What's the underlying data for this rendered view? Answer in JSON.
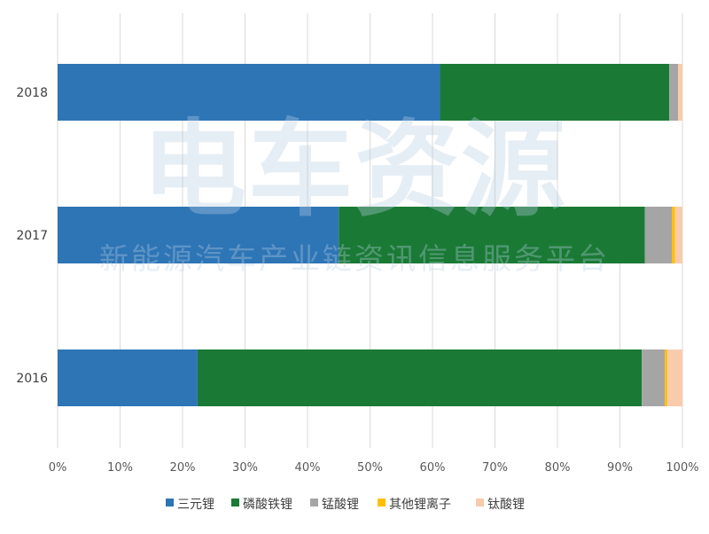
{
  "watermark": {
    "main_text": "电车资源",
    "sub_text": "新能源汽车产业链资讯信息服务平台"
  },
  "chart_data": {
    "type": "bar",
    "orientation": "horizontal",
    "stacked": true,
    "percent_stacked": true,
    "categories": [
      "2018",
      "2017",
      "2016"
    ],
    "series": [
      {
        "name": "三元锂",
        "color": "#2e75b6",
        "values": [
          61.2,
          45.0,
          22.4
        ]
      },
      {
        "name": "磷酸铁锂",
        "color": "#1a7a35",
        "values": [
          36.7,
          49.0,
          71.1
        ]
      },
      {
        "name": "锰酸锂",
        "color": "#a5a5a5",
        "values": [
          1.4,
          4.3,
          3.7
        ]
      },
      {
        "name": "其他锂离子",
        "color": "#ffc000",
        "values": [
          0.0,
          0.5,
          0.4
        ]
      },
      {
        "name": "钛酸锂",
        "color": "#f8cbad",
        "values": [
          0.7,
          1.2,
          2.4
        ]
      }
    ],
    "x_ticks": [
      "0%",
      "10%",
      "20%",
      "30%",
      "40%",
      "50%",
      "60%",
      "70%",
      "80%",
      "90%",
      "100%"
    ],
    "xlim": [
      0,
      100
    ],
    "grid": true,
    "legend_position": "bottom",
    "title": "",
    "xlabel": "",
    "ylabel": ""
  }
}
